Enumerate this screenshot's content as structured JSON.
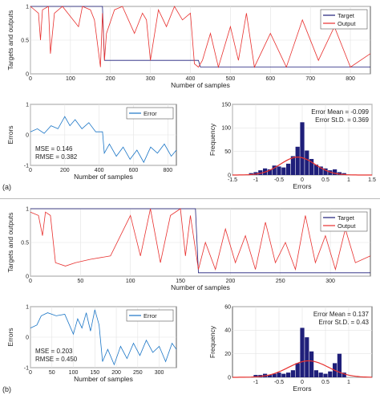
{
  "panels": [
    {
      "label": "(a)",
      "top_chart": {
        "type": "line",
        "ylabel": "Targets and outputs",
        "xlabel": "Number of samples",
        "xlim": [
          0,
          850
        ],
        "ylim": [
          0,
          1
        ],
        "xticks": [
          0,
          100,
          200,
          300,
          400,
          500,
          600,
          700,
          800
        ],
        "yticks": [
          0,
          0.5,
          1
        ],
        "legend": {
          "placement": "top-right",
          "entries": [
            "Target",
            "Output"
          ]
        },
        "series": [
          {
            "name": "Target",
            "color": "#1f1f7a",
            "x": [
              0,
              180,
              185,
              420,
              425,
              850
            ],
            "y": [
              1,
              1,
              0.2,
              0.2,
              0.1,
              0.1
            ]
          },
          {
            "name": "Output",
            "color": "#e8302e",
            "x": [
              0,
              20,
              25,
              30,
              45,
              50,
              60,
              80,
              100,
              120,
              130,
              150,
              160,
              175,
              180,
              185,
              190,
              210,
              230,
              260,
              280,
              290,
              300,
              320,
              340,
              360,
              380,
              400,
              410,
              420,
              430,
              450,
              470,
              500,
              520,
              540,
              560,
              600,
              640,
              680,
              720,
              760,
              800,
              850
            ],
            "y": [
              1,
              0.9,
              0.5,
              0.95,
              1,
              0.3,
              0.9,
              1,
              0.85,
              0.7,
              1,
              0.95,
              0.8,
              0.1,
              0.9,
              0.2,
              0.6,
              0.95,
              1,
              0.6,
              0.9,
              0.8,
              0.2,
              0.95,
              0.7,
              1,
              0.8,
              0.9,
              0.15,
              0.1,
              0.2,
              0.6,
              0.1,
              0.7,
              0.2,
              0.9,
              0.1,
              0.6,
              0.1,
              0.8,
              0.2,
              0.7,
              0.1,
              0.3
            ]
          }
        ]
      },
      "error_chart": {
        "type": "line",
        "ylabel": "Errors",
        "xlabel": "Number of samples",
        "xlim": [
          0,
          850
        ],
        "ylim": [
          -1,
          1
        ],
        "xticks": [
          0,
          200,
          400,
          600,
          800
        ],
        "yticks": [
          -1,
          0,
          1
        ],
        "legend": {
          "placement": "top-right",
          "entries": [
            "Error"
          ]
        },
        "annotations": [
          "MSE = 0.146",
          "RMSE = 0.382"
        ],
        "series": [
          {
            "name": "Error",
            "color": "#1a75c6",
            "x": [
              0,
              40,
              80,
              120,
              160,
              200,
              230,
              260,
              300,
              340,
              380,
              420,
              430,
              460,
              500,
              540,
              580,
              620,
              660,
              700,
              740,
              780,
              820,
              850
            ],
            "y": [
              0.1,
              0.2,
              0.05,
              0.3,
              0.2,
              0.6,
              0.3,
              0.5,
              0.2,
              0.4,
              0.1,
              0.1,
              -0.6,
              -0.3,
              -0.7,
              -0.4,
              -0.8,
              -0.5,
              -0.9,
              -0.4,
              -0.6,
              -0.3,
              -0.7,
              -0.5
            ]
          }
        ]
      },
      "hist_chart": {
        "type": "bar",
        "ylabel": "Frequency",
        "xlabel": "Errors",
        "xlim": [
          -1.5,
          1.5
        ],
        "ylim": [
          0,
          150
        ],
        "xticks": [
          -1.5,
          -1,
          -0.5,
          0,
          0.5,
          1,
          1.5
        ],
        "yticks": [
          0,
          50,
          100,
          150
        ],
        "annotations": [
          "Error Mean = -0.099",
          "Error St.D. = 0.369"
        ],
        "bar_color": "#1f1f7a",
        "curve_color": "#e8302e",
        "bins": [
          -1.1,
          -1.0,
          -0.9,
          -0.8,
          -0.7,
          -0.6,
          -0.5,
          -0.4,
          -0.3,
          -0.2,
          -0.1,
          0.0,
          0.1,
          0.2,
          0.3,
          0.4,
          0.5,
          0.6,
          0.7,
          0.8,
          0.9
        ],
        "values": [
          4,
          6,
          10,
          14,
          12,
          20,
          18,
          16,
          24,
          40,
          60,
          112,
          52,
          34,
          22,
          18,
          14,
          10,
          12,
          6,
          4
        ],
        "fit_curve": {
          "mean": -0.099,
          "std": 0.369,
          "peak": 38
        }
      }
    },
    {
      "label": "(b)",
      "top_chart": {
        "type": "line",
        "ylabel": "Targets and outputs",
        "xlabel": "Number of samples",
        "xlim": [
          0,
          340
        ],
        "ylim": [
          0,
          1
        ],
        "xticks": [
          0,
          50,
          100,
          150,
          200,
          250,
          300
        ],
        "yticks": [
          0,
          0.5,
          1
        ],
        "legend": {
          "placement": "top-right",
          "entries": [
            "Target",
            "Output"
          ]
        },
        "series": [
          {
            "name": "Target",
            "color": "#1f1f7a",
            "x": [
              0,
              165,
              168,
              340
            ],
            "y": [
              1,
              1,
              0.05,
              0.05
            ]
          },
          {
            "name": "Output",
            "color": "#e8302e",
            "x": [
              0,
              8,
              12,
              15,
              20,
              25,
              35,
              45,
              60,
              80,
              100,
              110,
              120,
              130,
              140,
              150,
              155,
              160,
              168,
              175,
              185,
              195,
              205,
              215,
              225,
              235,
              245,
              255,
              265,
              275,
              285,
              295,
              305,
              315,
              325,
              340
            ],
            "y": [
              0.95,
              0.9,
              0.6,
              0.95,
              0.9,
              0.2,
              0.15,
              0.2,
              0.25,
              0.3,
              0.9,
              0.3,
              1,
              0.2,
              0.9,
              1,
              0.3,
              0.9,
              0.1,
              0.5,
              0.1,
              0.7,
              0.2,
              0.6,
              0.1,
              0.8,
              0.2,
              0.5,
              0.1,
              0.9,
              0.2,
              0.6,
              0.1,
              0.7,
              0.2,
              0.3
            ]
          }
        ]
      },
      "error_chart": {
        "type": "line",
        "ylabel": "Errors",
        "xlabel": "Number of samples",
        "xlim": [
          0,
          340
        ],
        "ylim": [
          -1,
          1
        ],
        "xticks": [
          0,
          50,
          100,
          150,
          200,
          250,
          300
        ],
        "yticks": [
          -1,
          0,
          1
        ],
        "legend": {
          "placement": "top-right",
          "entries": [
            "Error"
          ]
        },
        "annotations": [
          "MSE = 0.203",
          "RMSE = 0.450"
        ],
        "series": [
          {
            "name": "Error",
            "color": "#1a75c6",
            "x": [
              0,
              15,
              25,
              40,
              60,
              80,
              100,
              110,
              120,
              130,
              140,
              150,
              160,
              168,
              180,
              195,
              210,
              225,
              240,
              255,
              270,
              285,
              300,
              315,
              330,
              340
            ],
            "y": [
              0.3,
              0.4,
              0.7,
              0.8,
              0.7,
              0.75,
              0.1,
              0.6,
              0.3,
              0.8,
              0.2,
              0.9,
              0.4,
              -0.8,
              -0.4,
              -0.9,
              -0.3,
              -0.7,
              -0.2,
              -0.6,
              -0.1,
              -0.5,
              -0.3,
              -0.8,
              -0.2,
              -0.4
            ]
          }
        ]
      },
      "hist_chart": {
        "type": "bar",
        "ylabel": "Frequency",
        "xlabel": "Errors",
        "xlim": [
          -1.5,
          1.5
        ],
        "ylim": [
          0,
          60
        ],
        "xticks": [
          -1,
          -0.5,
          0,
          0.5,
          1
        ],
        "yticks": [
          0,
          20,
          40,
          60
        ],
        "annotations": [
          "Error Mean = 0.137",
          "Error St.D. = 0.43"
        ],
        "bar_color": "#1f1f7a",
        "curve_color": "#e8302e",
        "bins": [
          -1.0,
          -0.9,
          -0.8,
          -0.7,
          -0.6,
          -0.5,
          -0.4,
          -0.3,
          -0.2,
          -0.1,
          0.0,
          0.1,
          0.2,
          0.3,
          0.4,
          0.5,
          0.6,
          0.7,
          0.8,
          0.9
        ],
        "values": [
          2,
          2,
          3,
          2,
          3,
          4,
          3,
          4,
          6,
          12,
          42,
          34,
          22,
          6,
          4,
          3,
          5,
          12,
          20,
          4
        ],
        "fit_curve": {
          "mean": 0.137,
          "std": 0.43,
          "peak": 14
        }
      }
    }
  ]
}
